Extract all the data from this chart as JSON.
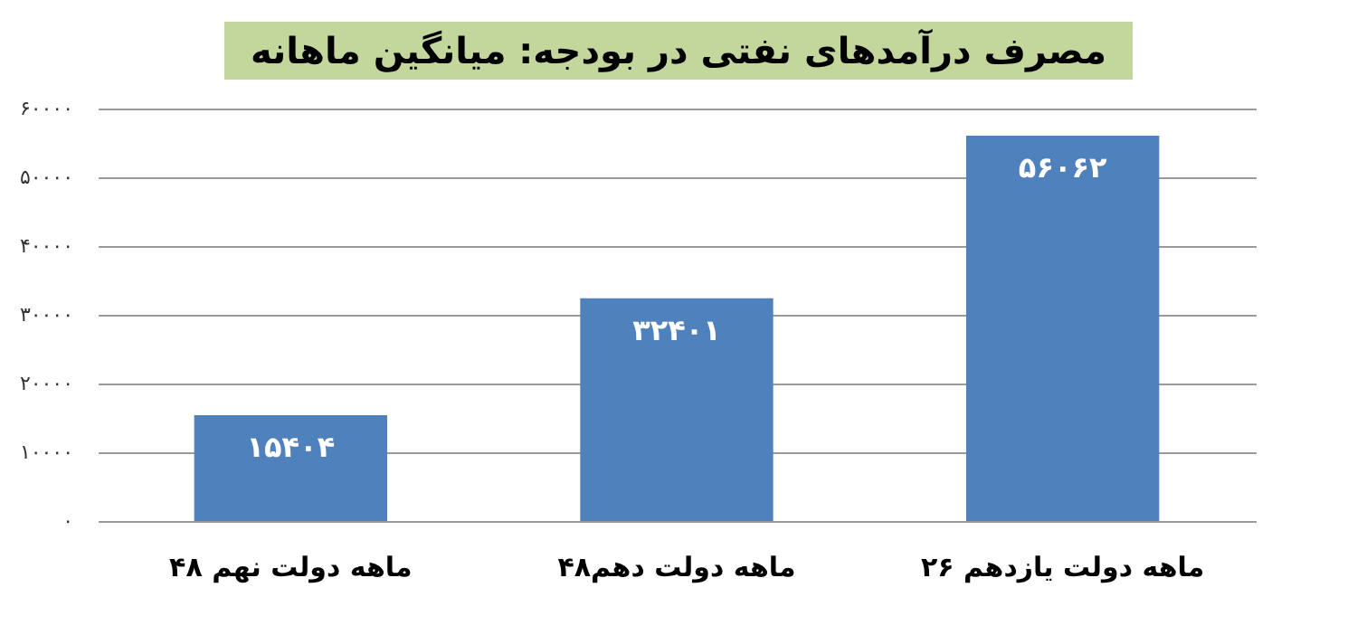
{
  "chart_data": {
    "type": "bar",
    "title": "مصرف درآمدهای نفتی در بودجه: میانگین ماهانه",
    "categories": [
      "۴۸ ماهه دولت نهم",
      "۴۸ماهه دولت دهم",
      "۲۶ ماهه دولت یازدهم"
    ],
    "values": [
      15404,
      32401,
      56062
    ],
    "value_labels": [
      "۱۵۴۰۴",
      "۳۲۴۰۱",
      "۵۶۰۶۲"
    ],
    "color": "#4f81bd",
    "ylim": [
      0,
      60000
    ],
    "yticks": [
      {
        "value": 0,
        "label": "۰"
      },
      {
        "value": 10000,
        "label": "۱۰۰۰۰"
      },
      {
        "value": 20000,
        "label": "۲۰۰۰۰"
      },
      {
        "value": 30000,
        "label": "۳۰۰۰۰"
      },
      {
        "value": 40000,
        "label": "۴۰۰۰۰"
      },
      {
        "value": 50000,
        "label": "۵۰۰۰۰"
      },
      {
        "value": 60000,
        "label": "۶۰۰۰۰"
      }
    ],
    "grid": "y"
  }
}
